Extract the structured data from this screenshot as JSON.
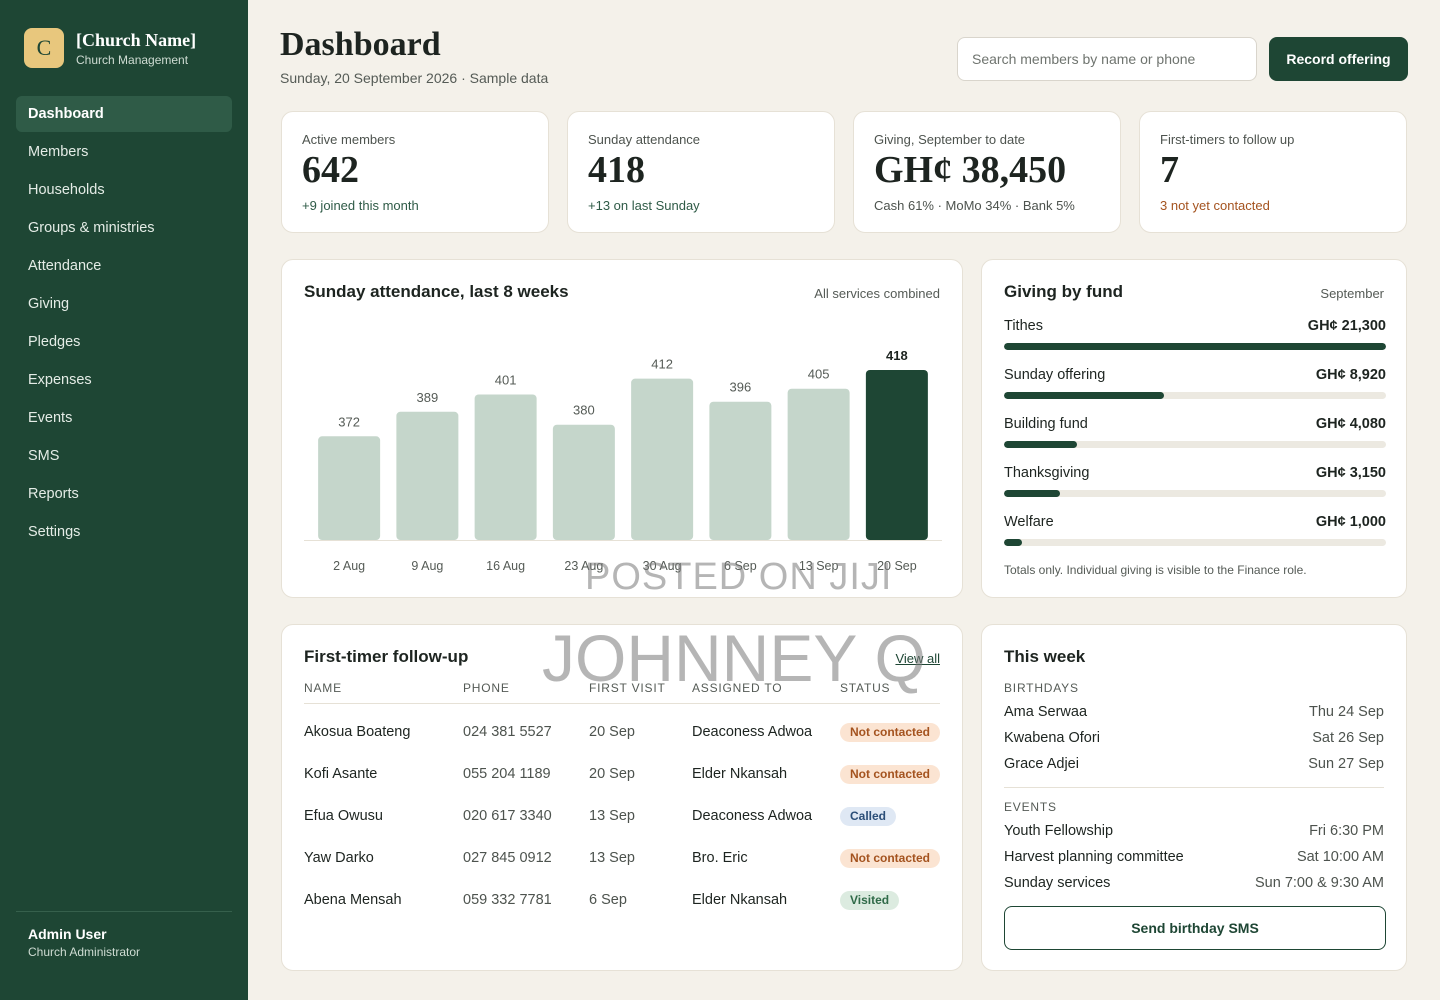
{
  "brand": {
    "logo_letter": "C",
    "name": "[Church Name]",
    "subtitle": "Church Management"
  },
  "nav": [
    {
      "label": "Dashboard",
      "active": true
    },
    {
      "label": "Members"
    },
    {
      "label": "Households"
    },
    {
      "label": "Groups & ministries"
    },
    {
      "label": "Attendance"
    },
    {
      "label": "Giving"
    },
    {
      "label": "Pledges"
    },
    {
      "label": "Expenses"
    },
    {
      "label": "Events"
    },
    {
      "label": "SMS"
    },
    {
      "label": "Reports"
    },
    {
      "label": "Settings"
    }
  ],
  "user": {
    "name": "Admin User",
    "role": "Church Administrator"
  },
  "header": {
    "title": "Dashboard",
    "subtitle": "Sunday, 20 September 2026 · Sample data",
    "search_placeholder": "Search members by name or phone",
    "primary_button": "Record offering"
  },
  "stats": [
    {
      "label": "Active members",
      "value": "642",
      "foot": "+9 joined this month"
    },
    {
      "label": "Sunday attendance",
      "value": "418",
      "foot": "+13 on last Sunday"
    },
    {
      "label": "Giving, September to date",
      "value": "GH¢ 38,450",
      "foot": "Cash 61% · MoMo 34% · Bank 5%"
    },
    {
      "label": "First-timers to follow up",
      "value": "7",
      "foot": "3 not yet contacted"
    }
  ],
  "attendance": {
    "title": "Sunday attendance, last 8 weeks",
    "meta": "All services combined"
  },
  "chart_data": {
    "type": "bar",
    "categories": [
      "2 Aug",
      "9 Aug",
      "16 Aug",
      "23 Aug",
      "30 Aug",
      "6 Sep",
      "13 Sep",
      "20 Sep"
    ],
    "values": [
      372,
      389,
      401,
      380,
      412,
      396,
      405,
      418
    ],
    "highlight_index": 7,
    "colors": {
      "bar": "#c5d6cb",
      "highlight": "#1e4634"
    },
    "title": "Sunday attendance, last 8 weeks"
  },
  "giving": {
    "title": "Giving by fund",
    "meta": "September",
    "funds": [
      {
        "name": "Tithes",
        "amount": "GH¢ 21,300",
        "value": 21300
      },
      {
        "name": "Sunday offering",
        "amount": "GH¢ 8,920",
        "value": 8920
      },
      {
        "name": "Building fund",
        "amount": "GH¢ 4,080",
        "value": 4080
      },
      {
        "name": "Thanksgiving",
        "amount": "GH¢ 3,150",
        "value": 3150
      },
      {
        "name": "Welfare",
        "amount": "GH¢ 1,000",
        "value": 1000
      }
    ],
    "note": "Totals only. Individual giving is visible to the Finance role."
  },
  "followup": {
    "title": "First-timer follow-up",
    "view_all": "View all",
    "columns": [
      "NAME",
      "PHONE",
      "FIRST VISIT",
      "ASSIGNED TO",
      "STATUS"
    ],
    "rows": [
      {
        "name": "Akosua Boateng",
        "phone": "024 381 5527",
        "first_visit": "20 Sep",
        "assigned": "Deaconess Adwoa",
        "status": "Not contacted"
      },
      {
        "name": "Kofi Asante",
        "phone": "055 204 1189",
        "first_visit": "20 Sep",
        "assigned": "Elder Nkansah",
        "status": "Not contacted"
      },
      {
        "name": "Efua Owusu",
        "phone": "020 617 3340",
        "first_visit": "13 Sep",
        "assigned": "Deaconess Adwoa",
        "status": "Called"
      },
      {
        "name": "Yaw Darko",
        "phone": "027 845 0912",
        "first_visit": "13 Sep",
        "assigned": "Bro. Eric",
        "status": "Not contacted"
      },
      {
        "name": "Abena Mensah",
        "phone": "059 332 7781",
        "first_visit": "6 Sep",
        "assigned": "Elder Nkansah",
        "status": "Visited"
      }
    ]
  },
  "week": {
    "title": "This week",
    "birthdays_label": "BIRTHDAYS",
    "birthdays": [
      {
        "name": "Ama Serwaa",
        "date": "Thu 24 Sep"
      },
      {
        "name": "Kwabena Ofori",
        "date": "Sat 26 Sep"
      },
      {
        "name": "Grace Adjei",
        "date": "Sun 27 Sep"
      }
    ],
    "events_label": "EVENTS",
    "events": [
      {
        "name": "Youth Fellowship",
        "date": "Fri 6:30 PM"
      },
      {
        "name": "Harvest planning committee",
        "date": "Sat 10:00 AM"
      },
      {
        "name": "Sunday services",
        "date": "Sun 7:00 & 9:30 AM"
      }
    ],
    "button": "Send birthday SMS"
  },
  "watermarks": {
    "line1": "POSTED ON JIJI",
    "line2": "JOHNNEY Q"
  }
}
